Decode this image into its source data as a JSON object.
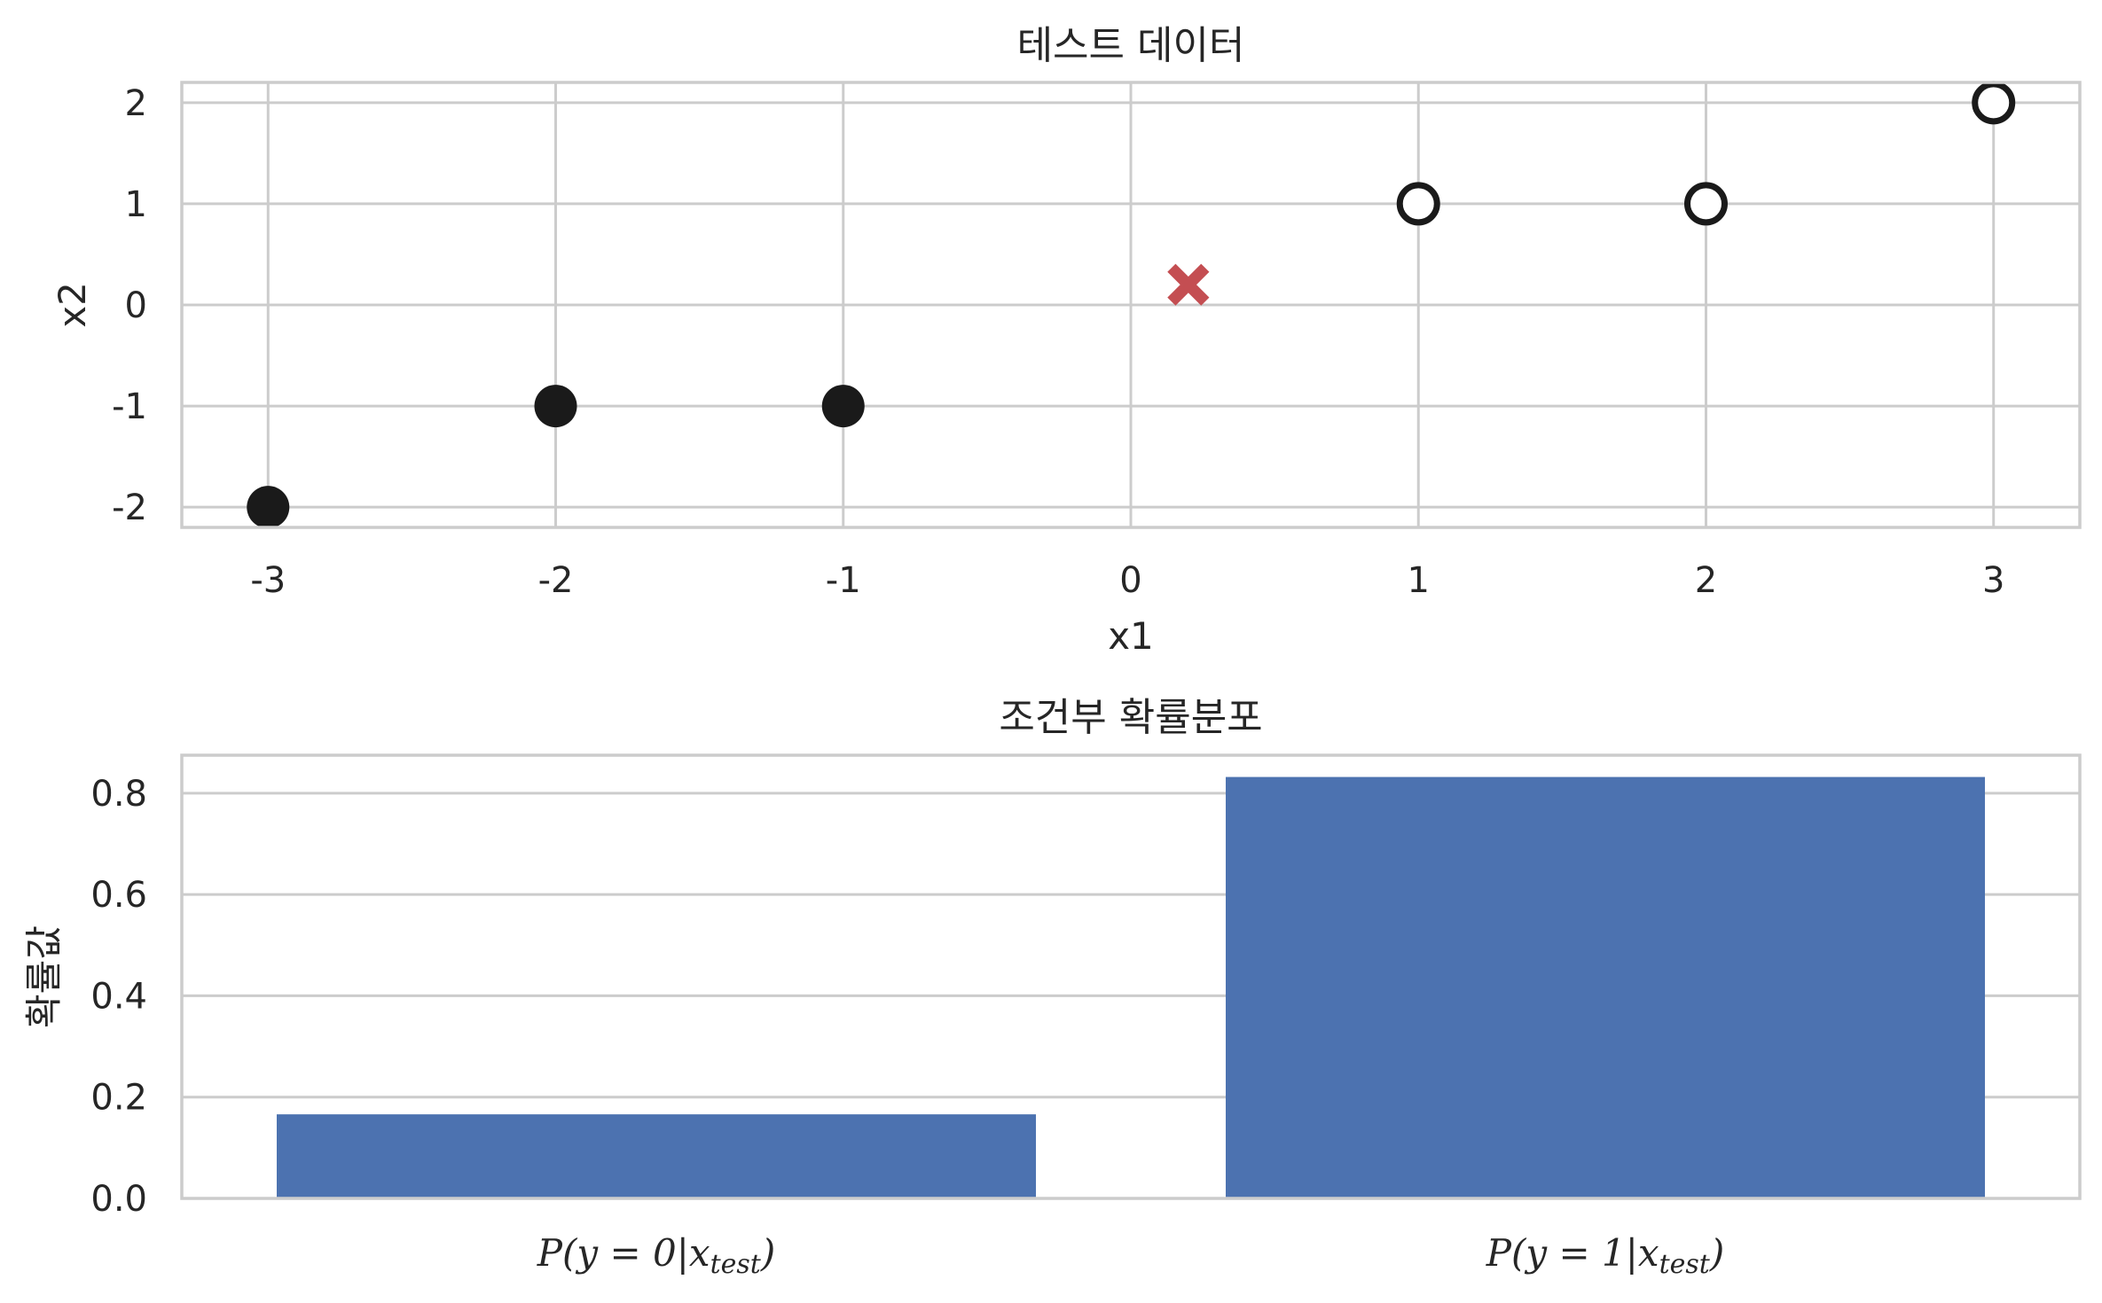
{
  "chart_data": [
    {
      "type": "scatter",
      "title": "테스트 데이터",
      "xlabel": "x1",
      "ylabel": "x2",
      "xlim": [
        -3.3,
        3.3
      ],
      "ylim": [
        -2.2,
        2.2
      ],
      "xticks": [
        -3,
        -2,
        -1,
        0,
        1,
        2,
        3
      ],
      "yticks": [
        -2,
        -1,
        0,
        1,
        2
      ],
      "grid": true,
      "series": [
        {
          "marker": "filled-circle",
          "color": "#1a1a1a",
          "points": [
            [
              -3,
              -2
            ],
            [
              -2,
              -1
            ],
            [
              -1,
              -1
            ]
          ]
        },
        {
          "marker": "open-circle",
          "color": "#1a1a1a",
          "points": [
            [
              1,
              1
            ],
            [
              2,
              1
            ],
            [
              3,
              2
            ]
          ]
        },
        {
          "marker": "x",
          "color": "#c44e52",
          "points": [
            [
              0.2,
              0.2
            ]
          ]
        }
      ]
    },
    {
      "type": "bar",
      "title": "조건부 확률분포",
      "xlabel": "",
      "ylabel": "확률값",
      "categories": [
        "P(y = 0|x_test)",
        "P(y = 1|x_test)"
      ],
      "values": [
        0.166,
        0.832
      ],
      "bar_color": "#4c72b0",
      "ylim": [
        0,
        0.875
      ],
      "yticks": [
        0.0,
        0.2,
        0.4,
        0.6,
        0.8
      ],
      "grid": true
    }
  ]
}
